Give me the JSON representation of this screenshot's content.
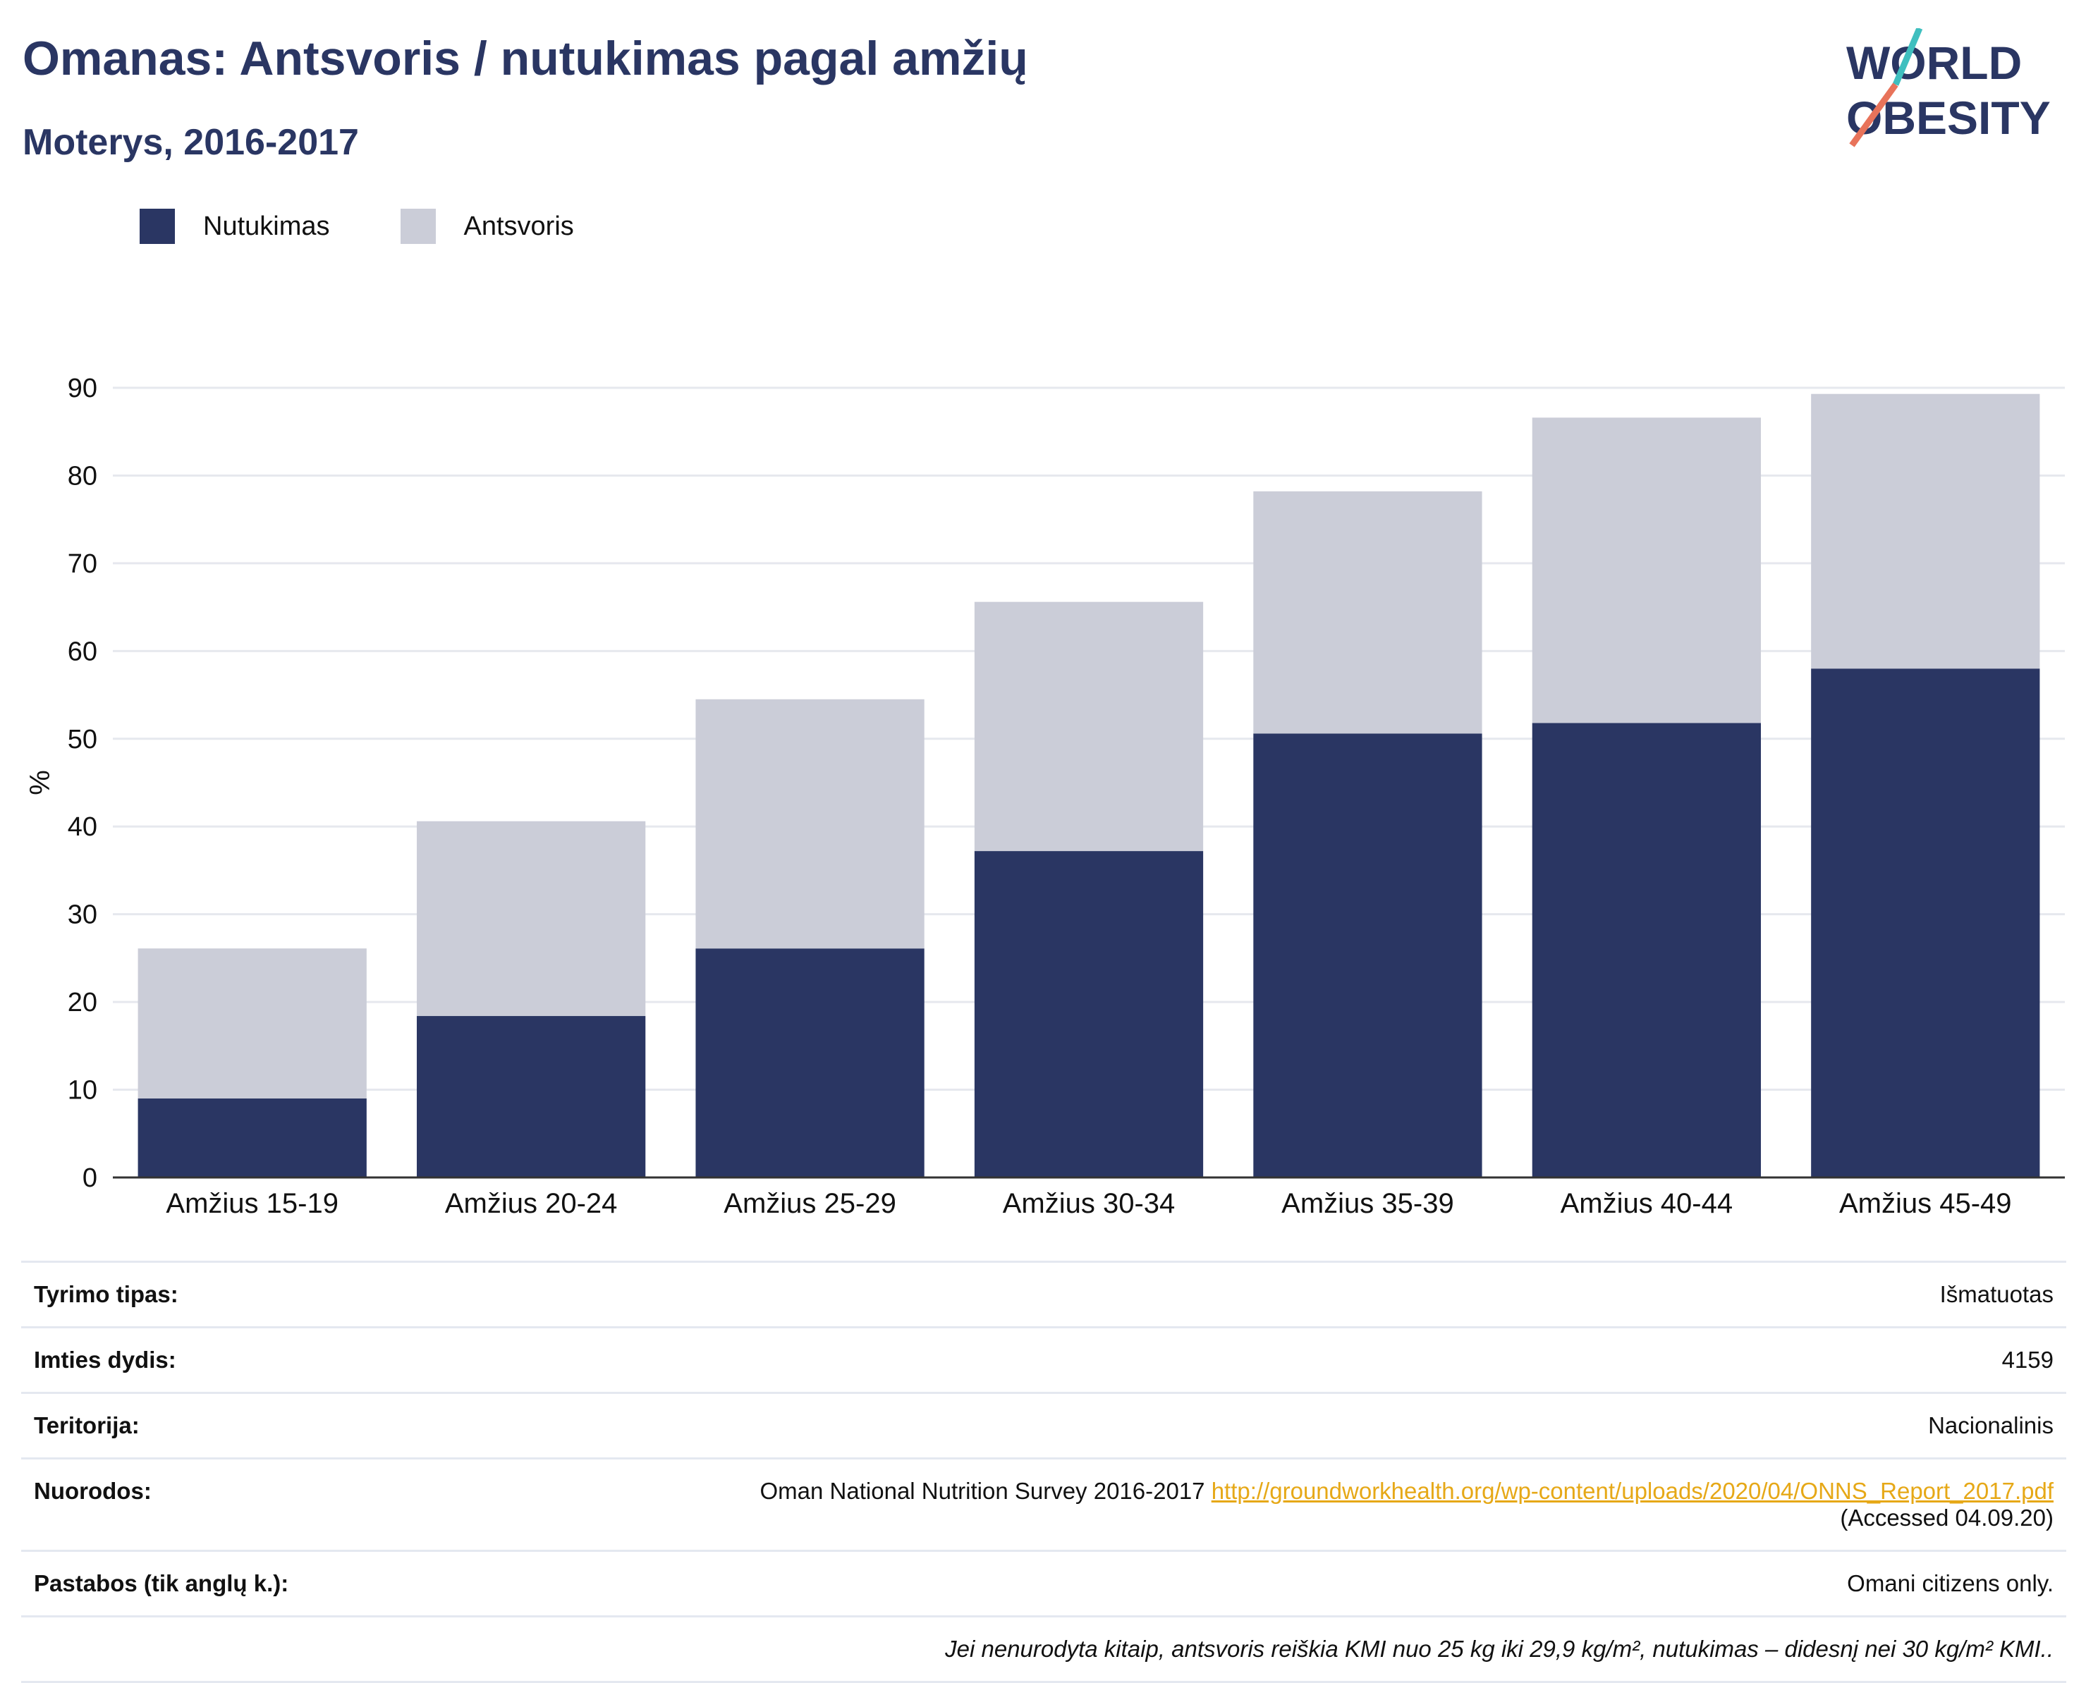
{
  "title": "Omanas: Antsvoris / nutukimas pagal amžių",
  "subtitle": "Moterys, 2016-2017",
  "logo": {
    "line1": "WORLD",
    "line2": "OBESITY"
  },
  "colors": {
    "obesity": "#2a3663",
    "overweight": "#cbcdd8",
    "accent_teal": "#3fbfbf",
    "accent_coral": "#e8735a",
    "link": "#e6a817"
  },
  "chart_data": {
    "type": "bar",
    "stacked": true,
    "categories": [
      "Amžius 15-19",
      "Amžius 20-24",
      "Amžius 25-29",
      "Amžius 30-34",
      "Amžius 35-39",
      "Amžius 40-44",
      "Amžius 45-49"
    ],
    "series": [
      {
        "name": "Nutukimas",
        "values": [
          9.0,
          18.4,
          26.1,
          37.2,
          50.6,
          51.8,
          58.0
        ]
      },
      {
        "name": "Antsvoris",
        "values": [
          17.1,
          22.2,
          28.4,
          28.4,
          27.6,
          34.8,
          31.3
        ]
      }
    ],
    "ylabel": "%",
    "ylim": [
      0,
      90
    ],
    "yticks": [
      0,
      10,
      20,
      30,
      40,
      50,
      60,
      70,
      80,
      90
    ],
    "grid": true,
    "legend_position": "top-left"
  },
  "info": {
    "rows": [
      {
        "label": "Tyrimo tipas:",
        "value": "Išmatuotas"
      },
      {
        "label": "Imties dydis:",
        "value": "4159"
      },
      {
        "label": "Teritorija:",
        "value": "Nacionalinis"
      }
    ],
    "references": {
      "label": "Nuorodos:",
      "text": "Oman National Nutrition Survey 2016-2017 ",
      "link": "http://groundworkhealth.org/wp-content/uploads/2020/04/ONNS_Report_2017.pdf",
      "accessed": "(Accessed 04.09.20)"
    },
    "notes": {
      "label": "Pastabos (tik anglų k.):",
      "value": "Omani citizens only."
    },
    "footnote": "Jei nenurodyta kitaip, antsvoris reiškia KMI nuo 25 kg iki 29,9 kg/m², nutukimas – didesnį nei 30 kg/m² KMI.."
  }
}
